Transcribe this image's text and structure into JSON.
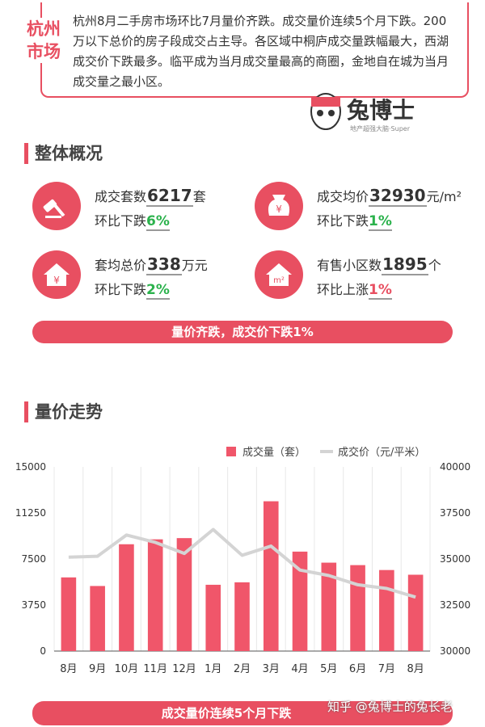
{
  "header": {
    "city_label": "杭州市场",
    "summary": "杭州8月二手房市场环比7月量价齐跌。成交量价连续5个月下跌。200万以下总价的房子段成交占主导。各区域中桐庐成交量跌幅最大，西湖成交价下跌最多。临平成为当月成交量最高的商圈，金地自在城为当月成交量之最小区。",
    "logo_name": "兔博士",
    "logo_tagline": "地产超强大脑·Super"
  },
  "overview": {
    "heading": "整体概况",
    "stats": [
      {
        "label": "成交套数",
        "value": "6217",
        "unit": "套",
        "change_label": "环比下跌",
        "change": "6%",
        "change_color": "#2bb24c"
      },
      {
        "label": "成交均价",
        "value": "32930",
        "unit": "元/m²",
        "change_label": "环比下跌",
        "change": "1%",
        "change_color": "#2bb24c"
      },
      {
        "label": "套均总价",
        "value": "338",
        "unit": "万元",
        "change_label": "环比下跌",
        "change": "2%",
        "change_color": "#2bb24c"
      },
      {
        "label": "有售小区数",
        "value": "1895",
        "unit": "个",
        "change_label": "环比上涨",
        "change": "1%",
        "change_color": "#e84f61"
      }
    ],
    "banner": "量价齐跌，成交价下跌1%"
  },
  "trend": {
    "heading": "量价走势",
    "banner": "成交量价连续5个月下跌"
  },
  "chart_data": {
    "type": "combo",
    "categories": [
      "8月",
      "9月",
      "10月",
      "11月",
      "12月",
      "1月",
      "2月",
      "3月",
      "4月",
      "5月",
      "6月",
      "7月",
      "8月"
    ],
    "series": [
      {
        "name": "成交量（套）",
        "type": "bar",
        "color": "#f0566a",
        "values": [
          6000,
          5300,
          8700,
          9100,
          9200,
          5400,
          5600,
          12200,
          8100,
          7200,
          7000,
          6600,
          6217
        ]
      },
      {
        "name": "成交价（元/平米）",
        "type": "line",
        "axis": "y2",
        "color": "#d4d4d4",
        "values": [
          35100,
          35150,
          36300,
          35900,
          35300,
          36600,
          35200,
          35700,
          34400,
          34100,
          33600,
          33400,
          32930
        ]
      }
    ],
    "ylim": [
      0,
      15000
    ],
    "yticks": [
      0,
      3750,
      7500,
      11250,
      15000
    ],
    "y2lim": [
      30000,
      40000
    ],
    "y2ticks": [
      30000,
      32500,
      35000,
      37500,
      40000
    ]
  },
  "watermark": "知乎 @兔博士的兔长老"
}
